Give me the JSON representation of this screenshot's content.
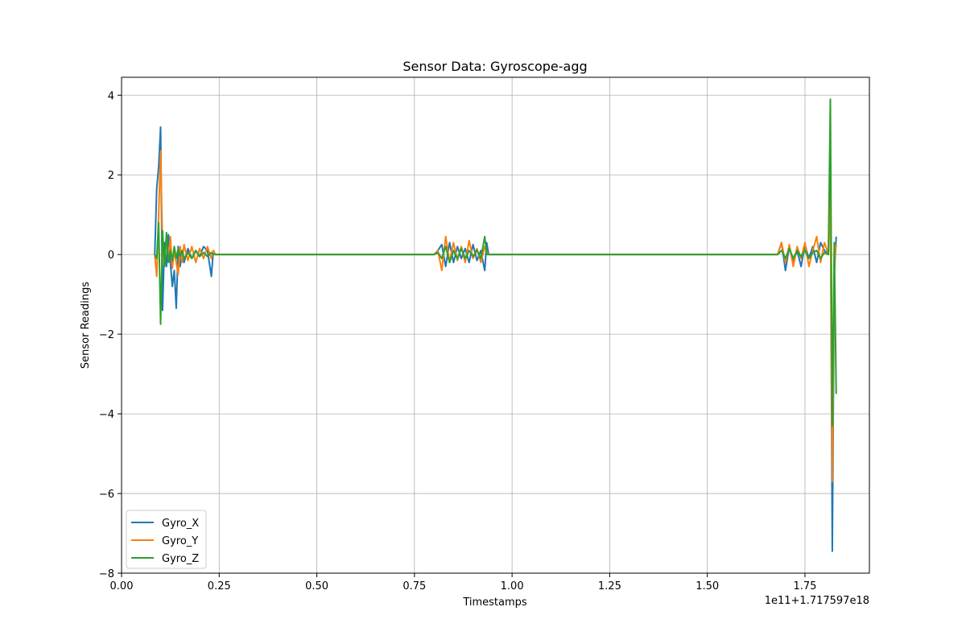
{
  "chart_data": {
    "type": "line",
    "title": "Sensor Data: Gyroscope-agg",
    "xlabel": "Timestamps",
    "ylabel": "Sensor Readings",
    "offset_label": "1e11+1.717597e18",
    "xlim": [
      0.0,
      1.915
    ],
    "ylim": [
      -8.0,
      4.45
    ],
    "xticks": [
      0.0,
      0.25,
      0.5,
      0.75,
      1.0,
      1.25,
      1.5,
      1.75
    ],
    "xtick_labels": [
      "0.00",
      "0.25",
      "0.50",
      "0.75",
      "1.00",
      "1.25",
      "1.50",
      "1.75"
    ],
    "yticks": [
      -8,
      -6,
      -4,
      -2,
      0,
      2,
      4
    ],
    "ytick_labels": [
      "−8",
      "−6",
      "−4",
      "−2",
      "0",
      "2",
      "4"
    ],
    "grid": true,
    "legend_position": "lower-left",
    "series": [
      {
        "name": "Gyro_X",
        "color": "#1f77b4",
        "x": [
          0.085,
          0.09,
          0.095,
          0.1,
          0.105,
          0.11,
          0.115,
          0.12,
          0.125,
          0.13,
          0.135,
          0.14,
          0.145,
          0.15,
          0.155,
          0.16,
          0.17,
          0.18,
          0.19,
          0.2,
          0.21,
          0.22,
          0.23,
          0.235,
          0.24,
          0.25,
          0.3,
          0.35,
          0.4,
          0.45,
          0.5,
          0.55,
          0.6,
          0.65,
          0.7,
          0.75,
          0.8,
          0.81,
          0.82,
          0.83,
          0.84,
          0.85,
          0.86,
          0.87,
          0.88,
          0.89,
          0.9,
          0.91,
          0.92,
          0.93,
          0.935,
          0.94,
          1.0,
          1.1,
          1.2,
          1.3,
          1.4,
          1.5,
          1.6,
          1.68,
          1.69,
          1.7,
          1.71,
          1.72,
          1.73,
          1.74,
          1.75,
          1.76,
          1.77,
          1.78,
          1.79,
          1.8,
          1.81,
          1.815,
          1.82,
          1.825,
          1.83
        ],
        "values": [
          0.0,
          1.65,
          2.2,
          3.2,
          -1.4,
          0.3,
          -0.3,
          0.5,
          -0.2,
          -0.8,
          -0.4,
          -1.35,
          0.2,
          -0.3,
          0.1,
          -0.2,
          0.15,
          -0.1,
          0.1,
          -0.05,
          0.2,
          0.1,
          -0.55,
          0.1,
          0.0,
          0.0,
          0.0,
          0.0,
          0.0,
          0.0,
          0.0,
          0.0,
          0.0,
          0.0,
          0.0,
          0.0,
          0.0,
          0.1,
          0.25,
          -0.3,
          0.3,
          -0.2,
          0.2,
          -0.1,
          0.15,
          -0.2,
          0.25,
          -0.15,
          0.1,
          -0.4,
          0.3,
          0.0,
          0.0,
          0.0,
          0.0,
          0.0,
          0.0,
          0.0,
          0.0,
          0.0,
          0.3,
          -0.4,
          0.2,
          -0.2,
          0.1,
          -0.3,
          0.25,
          -0.1,
          0.2,
          -0.2,
          0.3,
          0.1,
          0.0,
          2.0,
          -7.45,
          -0.5,
          0.45
        ]
      },
      {
        "name": "Gyro_Y",
        "color": "#ff7f0e",
        "x": [
          0.085,
          0.09,
          0.095,
          0.1,
          0.105,
          0.11,
          0.115,
          0.12,
          0.125,
          0.13,
          0.135,
          0.14,
          0.145,
          0.15,
          0.155,
          0.16,
          0.17,
          0.18,
          0.19,
          0.2,
          0.21,
          0.22,
          0.23,
          0.235,
          0.24,
          0.25,
          0.3,
          0.35,
          0.4,
          0.45,
          0.5,
          0.55,
          0.6,
          0.65,
          0.7,
          0.75,
          0.8,
          0.81,
          0.82,
          0.83,
          0.84,
          0.85,
          0.86,
          0.87,
          0.88,
          0.89,
          0.9,
          0.91,
          0.92,
          0.93,
          0.935,
          0.94,
          1.0,
          1.1,
          1.2,
          1.3,
          1.4,
          1.5,
          1.6,
          1.68,
          1.69,
          1.7,
          1.71,
          1.72,
          1.73,
          1.74,
          1.75,
          1.76,
          1.77,
          1.78,
          1.79,
          1.8,
          1.81,
          1.815,
          1.82,
          1.825,
          1.83
        ],
        "values": [
          0.0,
          -0.55,
          1.0,
          2.6,
          0.2,
          -0.3,
          0.4,
          -0.1,
          0.45,
          -0.35,
          0.1,
          -0.2,
          -0.5,
          0.2,
          -0.2,
          0.25,
          -0.15,
          0.2,
          -0.2,
          0.15,
          -0.1,
          0.2,
          -0.1,
          0.1,
          0.0,
          0.0,
          0.0,
          0.0,
          0.0,
          0.0,
          0.0,
          0.0,
          0.0,
          0.0,
          0.0,
          0.0,
          0.0,
          0.1,
          -0.4,
          0.45,
          -0.2,
          0.3,
          -0.15,
          0.2,
          -0.2,
          0.35,
          -0.1,
          0.15,
          -0.2,
          0.2,
          0.05,
          0.0,
          0.0,
          0.0,
          0.0,
          0.0,
          0.0,
          0.0,
          0.0,
          0.0,
          0.3,
          -0.2,
          0.25,
          -0.3,
          0.2,
          -0.1,
          0.3,
          -0.3,
          0.1,
          0.45,
          -0.2,
          0.3,
          0.0,
          1.5,
          -5.7,
          -0.3,
          0.25
        ]
      },
      {
        "name": "Gyro_Z",
        "color": "#2ca02c",
        "x": [
          0.085,
          0.09,
          0.095,
          0.1,
          0.105,
          0.11,
          0.115,
          0.12,
          0.125,
          0.13,
          0.135,
          0.14,
          0.145,
          0.15,
          0.155,
          0.16,
          0.17,
          0.18,
          0.19,
          0.2,
          0.21,
          0.22,
          0.23,
          0.235,
          0.24,
          0.25,
          0.3,
          0.35,
          0.4,
          0.45,
          0.5,
          0.55,
          0.6,
          0.65,
          0.7,
          0.75,
          0.8,
          0.81,
          0.82,
          0.83,
          0.84,
          0.85,
          0.86,
          0.87,
          0.88,
          0.89,
          0.9,
          0.91,
          0.92,
          0.93,
          0.935,
          0.94,
          1.0,
          1.1,
          1.2,
          1.3,
          1.4,
          1.5,
          1.6,
          1.68,
          1.69,
          1.7,
          1.71,
          1.72,
          1.73,
          1.74,
          1.75,
          1.76,
          1.77,
          1.78,
          1.79,
          1.8,
          1.81,
          1.815,
          1.82,
          1.825,
          1.83
        ],
        "values": [
          0.0,
          -0.1,
          0.8,
          -1.75,
          0.6,
          -0.3,
          0.55,
          -0.2,
          0.1,
          -0.15,
          0.2,
          -0.1,
          0.15,
          -0.05,
          0.1,
          -0.1,
          0.05,
          -0.1,
          0.1,
          -0.05,
          0.05,
          -0.05,
          0.05,
          0.0,
          0.0,
          0.0,
          0.0,
          0.0,
          0.0,
          0.0,
          0.0,
          0.0,
          0.0,
          0.0,
          0.0,
          0.0,
          0.0,
          0.05,
          -0.1,
          0.2,
          -0.2,
          0.1,
          -0.1,
          0.15,
          -0.1,
          0.1,
          -0.05,
          0.1,
          -0.1,
          0.45,
          0.0,
          0.0,
          0.0,
          0.0,
          0.0,
          0.0,
          0.0,
          0.0,
          0.0,
          0.0,
          0.1,
          -0.1,
          0.15,
          -0.1,
          0.1,
          -0.05,
          0.1,
          -0.1,
          0.05,
          0.1,
          -0.1,
          0.05,
          0.0,
          3.9,
          -4.3,
          0.3,
          -3.5
        ]
      }
    ]
  }
}
